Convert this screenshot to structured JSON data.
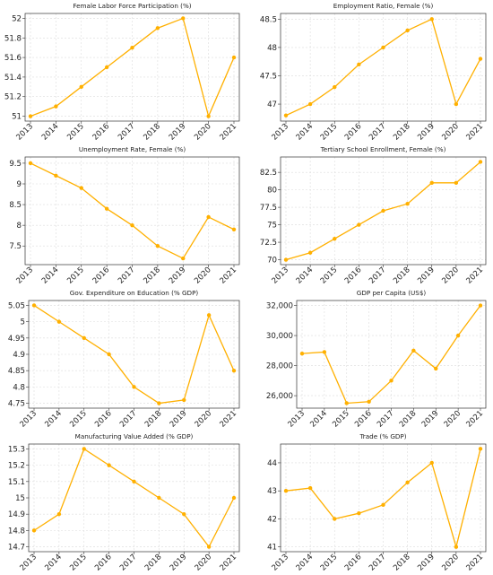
{
  "accent_color": "#FFB000",
  "chart_data": [
    {
      "type": "line",
      "title": "Female Labor Force Participation (%)",
      "x": [
        "2013",
        "2014",
        "2015",
        "2016",
        "2017",
        "2018",
        "2019",
        "2020",
        "2021"
      ],
      "values": [
        51.0,
        51.1,
        51.3,
        51.5,
        51.7,
        51.9,
        52.0,
        51.0,
        51.6
      ],
      "ylim": [
        50.95,
        52.05
      ],
      "yticks": [
        51,
        51.2,
        51.4,
        51.6,
        51.8,
        52
      ],
      "ytick_labels": [
        "51",
        "51.2",
        "51.4",
        "51.6",
        "51.8",
        "52"
      ],
      "grid": true
    },
    {
      "type": "line",
      "title": "Employment Ratio, Female (%)",
      "x": [
        "2013",
        "2014",
        "2015",
        "2016",
        "2017",
        "2018",
        "2019",
        "2020",
        "2021"
      ],
      "values": [
        46.8,
        47.0,
        47.3,
        47.7,
        48.0,
        48.3,
        48.5,
        47.0,
        47.8
      ],
      "ylim": [
        46.7,
        48.6
      ],
      "yticks": [
        47,
        47.5,
        48,
        48.5
      ],
      "ytick_labels": [
        "47",
        "47.5",
        "48",
        "48.5"
      ],
      "grid": true
    },
    {
      "type": "line",
      "title": "Unemployment Rate, Female (%)",
      "x": [
        "2013",
        "2014",
        "2015",
        "2016",
        "2017",
        "2018",
        "2019",
        "2020",
        "2021"
      ],
      "values": [
        9.5,
        9.2,
        8.9,
        8.4,
        8.0,
        7.5,
        7.2,
        8.2,
        7.9
      ],
      "ylim": [
        7.05,
        9.65
      ],
      "yticks": [
        7.5,
        8,
        8.5,
        9,
        9.5
      ],
      "ytick_labels": [
        "7.5",
        "8",
        "8.5",
        "9",
        "9.5"
      ],
      "grid": true
    },
    {
      "type": "line",
      "title": "Tertiary School Enrollment, Female (%)",
      "x": [
        "2013",
        "2014",
        "2015",
        "2016",
        "2017",
        "2018",
        "2019",
        "2020",
        "2021"
      ],
      "values": [
        70.0,
        71.0,
        73.0,
        75.0,
        77.0,
        78.0,
        81.0,
        81.0,
        84.0
      ],
      "ylim": [
        69.3,
        84.7
      ],
      "yticks": [
        70,
        72.5,
        75,
        77.5,
        80,
        82.5
      ],
      "ytick_labels": [
        "70",
        "72.5",
        "75",
        "77.5",
        "80",
        "82.5"
      ],
      "grid": true
    },
    {
      "type": "line",
      "title": "Gov. Expenditure on Education (% GDP)",
      "x": [
        "2013",
        "2014",
        "2015",
        "2016",
        "2017",
        "2018",
        "2019",
        "2020",
        "2021"
      ],
      "values": [
        5.05,
        5.0,
        4.95,
        4.9,
        4.8,
        4.75,
        4.76,
        5.02,
        4.85
      ],
      "ylim": [
        4.735,
        5.065
      ],
      "yticks": [
        4.75,
        4.8,
        4.85,
        4.9,
        4.95,
        5,
        5.05
      ],
      "ytick_labels": [
        "4.75",
        "4.8",
        "4.85",
        "4.9",
        "4.95",
        "5",
        "5.05"
      ],
      "grid": true
    },
    {
      "type": "line",
      "title": "GDP per Capita (US$)",
      "x": [
        "2013",
        "2014",
        "2015",
        "2016",
        "2017",
        "2018",
        "2019",
        "2020",
        "2021"
      ],
      "values": [
        28800,
        28900,
        25500,
        25600,
        27000,
        29000,
        27800,
        30000,
        32000
      ],
      "ylim": [
        25170,
        32330
      ],
      "yticks": [
        26000,
        28000,
        30000,
        32000
      ],
      "ytick_labels": [
        "26,000",
        "28,000",
        "30,000",
        "32,000"
      ],
      "grid": true
    },
    {
      "type": "line",
      "title": "Manufacturing Value Added (% GDP)",
      "x": [
        "2013",
        "2014",
        "2015",
        "2016",
        "2017",
        "2018",
        "2019",
        "2020",
        "2021"
      ],
      "values": [
        14.8,
        14.9,
        15.3,
        15.2,
        15.1,
        15.0,
        14.9,
        14.7,
        15.0
      ],
      "ylim": [
        14.67,
        15.33
      ],
      "yticks": [
        14.7,
        14.8,
        14.9,
        15,
        15.1,
        15.2,
        15.3
      ],
      "ytick_labels": [
        "14.7",
        "14.8",
        "14.9",
        "15",
        "15.1",
        "15.2",
        "15.3"
      ],
      "grid": true
    },
    {
      "type": "line",
      "title": "Trade (% GDP)",
      "x": [
        "2013",
        "2014",
        "2015",
        "2016",
        "2017",
        "2018",
        "2019",
        "2020",
        "2021"
      ],
      "values": [
        43.0,
        43.1,
        42.0,
        42.2,
        42.5,
        43.3,
        44.0,
        41.0,
        44.5
      ],
      "ylim": [
        40.83,
        44.67
      ],
      "yticks": [
        41,
        42,
        43,
        44
      ],
      "ytick_labels": [
        "41",
        "42",
        "43",
        "44"
      ],
      "grid": true
    }
  ]
}
